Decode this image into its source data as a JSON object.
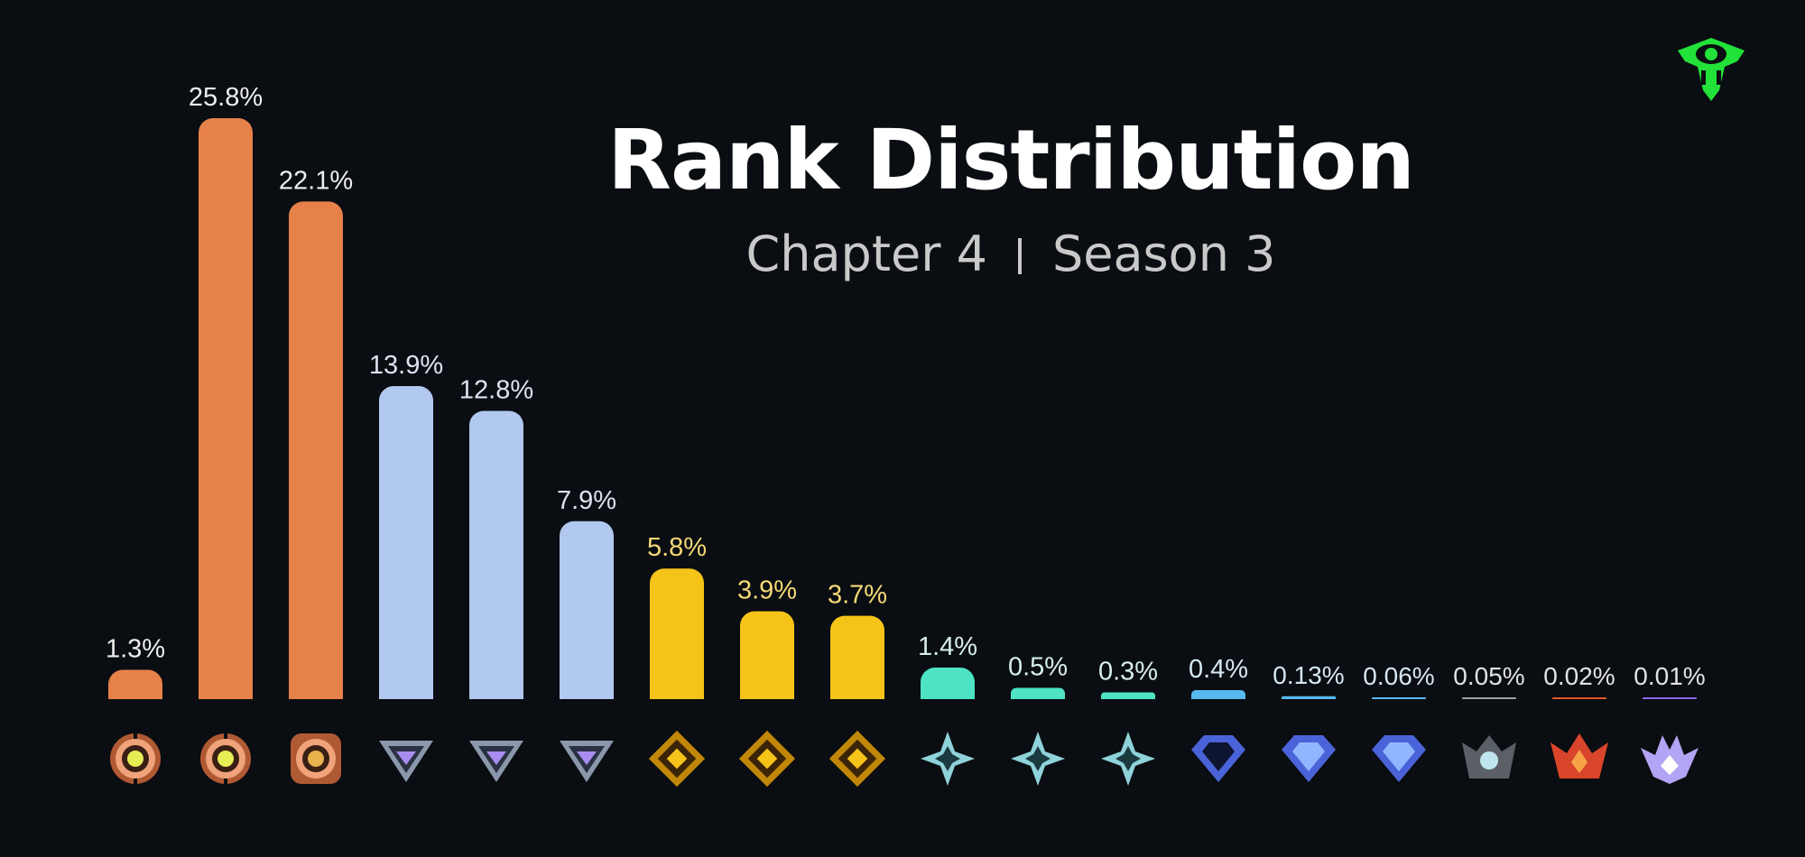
{
  "header": {
    "title": "Rank Distribution",
    "subtitle_left": "Chapter 4",
    "subtitle_right": "Season 3"
  },
  "logo": {
    "icon": "green-eye-shield-icon",
    "color": "#22e23a"
  },
  "chart_data": {
    "type": "bar",
    "title": "Rank Distribution",
    "subtitle": "Chapter 4 | Season 3",
    "xlabel": "",
    "ylabel": "",
    "ylim": [
      0,
      28
    ],
    "grid": false,
    "legend": "none",
    "categories": [
      {
        "icon": "bronze-1-icon",
        "tier": "bronze"
      },
      {
        "icon": "bronze-2-icon",
        "tier": "bronze"
      },
      {
        "icon": "bronze-3-icon",
        "tier": "bronze"
      },
      {
        "icon": "silver-1-icon",
        "tier": "silver"
      },
      {
        "icon": "silver-2-icon",
        "tier": "silver"
      },
      {
        "icon": "silver-3-icon",
        "tier": "silver"
      },
      {
        "icon": "gold-1-icon",
        "tier": "gold"
      },
      {
        "icon": "gold-2-icon",
        "tier": "gold"
      },
      {
        "icon": "gold-3-icon",
        "tier": "gold"
      },
      {
        "icon": "platinum-1-icon",
        "tier": "platinum"
      },
      {
        "icon": "platinum-2-icon",
        "tier": "platinum"
      },
      {
        "icon": "platinum-3-icon",
        "tier": "platinum"
      },
      {
        "icon": "diamond-1-icon",
        "tier": "diamond"
      },
      {
        "icon": "diamond-2-icon",
        "tier": "diamond"
      },
      {
        "icon": "diamond-3-icon",
        "tier": "diamond"
      },
      {
        "icon": "elite-icon",
        "tier": "elite"
      },
      {
        "icon": "champion-icon",
        "tier": "champion"
      },
      {
        "icon": "unreal-icon",
        "tier": "unreal"
      }
    ],
    "values": [
      1.3,
      25.8,
      22.1,
      13.9,
      12.8,
      7.9,
      5.8,
      3.9,
      3.7,
      1.4,
      0.5,
      0.3,
      0.4,
      0.13,
      0.06,
      0.05,
      0.02,
      0.01
    ],
    "labels": [
      "1.3%",
      "25.8%",
      "22.1%",
      "13.9%",
      "12.8%",
      "7.9%",
      "5.8%",
      "3.9%",
      "3.7%",
      "1.4%",
      "0.5%",
      "0.3%",
      "0.4%",
      "0.13%",
      "0.06%",
      "0.05%",
      "0.02%",
      "0.01%"
    ],
    "tier_colors": {
      "bronze": "#e6814a",
      "silver": "#b1c8ef",
      "gold": "#f6c419",
      "platinum": "#4de3c4",
      "diamond": "#56b9f0",
      "elite": "#9ca3a9",
      "champion": "#e0542b",
      "unreal": "#8a68ea"
    },
    "label_colors": {
      "bronze": "#eeeeee",
      "silver": "#dbe3f2",
      "gold": "#f6d977",
      "platinum": "#d7f0ea",
      "diamond": "#d5e7f3",
      "elite": "#e2e2e2",
      "champion": "#e2e2e2",
      "unreal": "#e2e2e2"
    }
  }
}
